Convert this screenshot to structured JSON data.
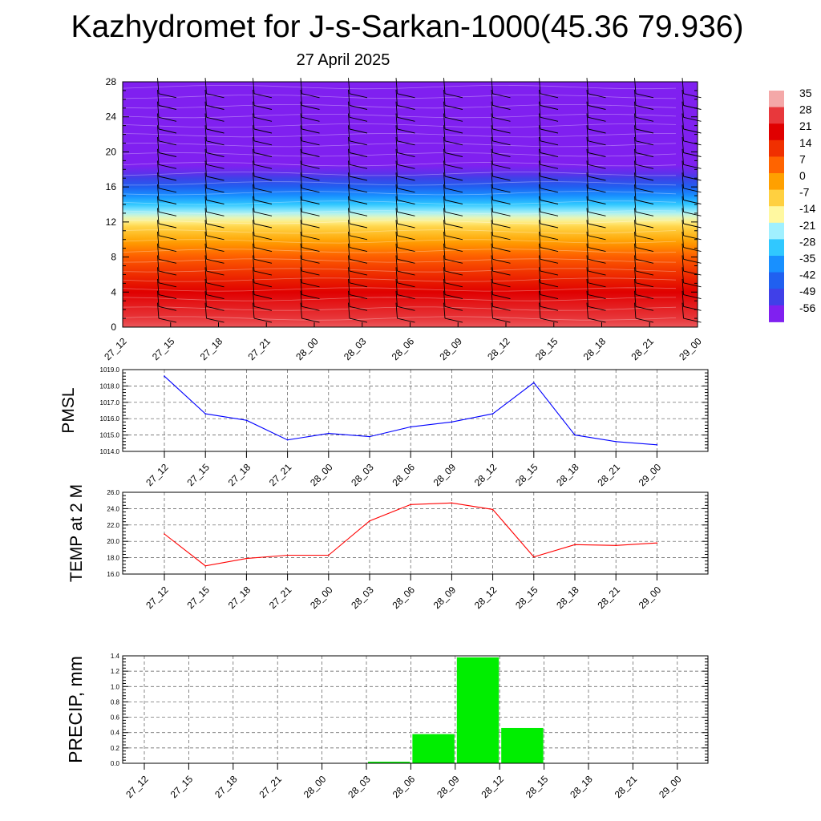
{
  "title": "Kazhydromet for J-s-Sarkan-1000(45.36 79.936)",
  "subtitle": "27 April 2025",
  "chart_data": [
    {
      "type": "heatmap",
      "x_ticks": [
        "27_12",
        "27_15",
        "27_18",
        "27_21",
        "28_00",
        "28_03",
        "28_06",
        "28_09",
        "28_12",
        "28_15",
        "28_18",
        "28_21",
        "29_00"
      ],
      "y_ticks": [
        "0",
        "4",
        "8",
        "12",
        "16",
        "20",
        "24",
        "28"
      ],
      "ylim": [
        0,
        28
      ],
      "colorbar": {
        "labels": [
          "35",
          "28",
          "21",
          "14",
          "7",
          "0",
          "-7",
          "-14",
          "-21",
          "-28",
          "-35",
          "-42",
          "-49",
          "-56"
        ],
        "colors": [
          "#f4a8a8",
          "#e8383c",
          "#e00000",
          "#f03000",
          "#ff6400",
          "#ffa000",
          "#ffd040",
          "#fff8a0",
          "#a0f0ff",
          "#30c8ff",
          "#1890ff",
          "#2060f0",
          "#4040e8",
          "#8020f0"
        ]
      },
      "profile": [
        {
          "height": 0,
          "value": 30
        },
        {
          "height": 4,
          "value": 21
        },
        {
          "height": 8,
          "value": 8
        },
        {
          "height": 11.5,
          "value": -8
        },
        {
          "height": 12.5,
          "value": -16
        },
        {
          "height": 14,
          "value": -28
        },
        {
          "height": 16,
          "value": -42
        },
        {
          "height": 17.5,
          "value": -52
        },
        {
          "height": 19,
          "value": -58
        },
        {
          "height": 28,
          "value": -60
        }
      ],
      "wind_barbs": "present",
      "grid": false
    },
    {
      "type": "line",
      "ylabel": "PMSL",
      "categories": [
        "27_12",
        "27_15",
        "27_18",
        "27_21",
        "28_00",
        "28_03",
        "28_06",
        "28_09",
        "28_12",
        "28_15",
        "28_18",
        "28_21",
        "29_00"
      ],
      "values": [
        1018.6,
        1016.3,
        1015.9,
        1014.7,
        1015.1,
        1014.9,
        1015.5,
        1015.8,
        1016.3,
        1018.2,
        1015.0,
        1014.6,
        1014.4
      ],
      "y_ticks": [
        "1014.0",
        "1015.0",
        "1016.0",
        "1017.0",
        "1018.0",
        "1019.0"
      ],
      "ylim": [
        1014,
        1019
      ],
      "color": "#0000ff",
      "grid": true
    },
    {
      "type": "line",
      "ylabel": "TEMP at 2 M",
      "categories": [
        "27_12",
        "27_15",
        "27_18",
        "27_21",
        "28_00",
        "28_03",
        "28_06",
        "28_09",
        "28_12",
        "28_15",
        "28_18",
        "28_21",
        "29_00"
      ],
      "values": [
        20.9,
        17.0,
        17.9,
        18.3,
        18.3,
        22.5,
        24.5,
        24.7,
        23.9,
        18.1,
        19.6,
        19.5,
        19.8
      ],
      "y_ticks": [
        "16.0",
        "18.0",
        "20.0",
        "22.0",
        "24.0",
        "26.0"
      ],
      "ylim": [
        16,
        26
      ],
      "color": "#ff0000",
      "grid": true
    },
    {
      "type": "bar",
      "ylabel": "PRECIP, mm",
      "categories": [
        "27_12",
        "27_15",
        "27_18",
        "27_21",
        "28_00",
        "28_03",
        "28_06",
        "28_09",
        "28_12",
        "28_15",
        "28_18",
        "28_21",
        "29_00"
      ],
      "values": [
        0,
        0,
        0,
        0,
        0,
        0.02,
        0.38,
        1.38,
        0.46,
        0,
        0,
        0,
        0
      ],
      "y_ticks": [
        "0.0",
        "0.2",
        "0.4",
        "0.6",
        "0.8",
        "1.0",
        "1.2",
        "1.4"
      ],
      "ylim": [
        0,
        1.4
      ],
      "color": "#00ee00",
      "grid": true
    }
  ]
}
